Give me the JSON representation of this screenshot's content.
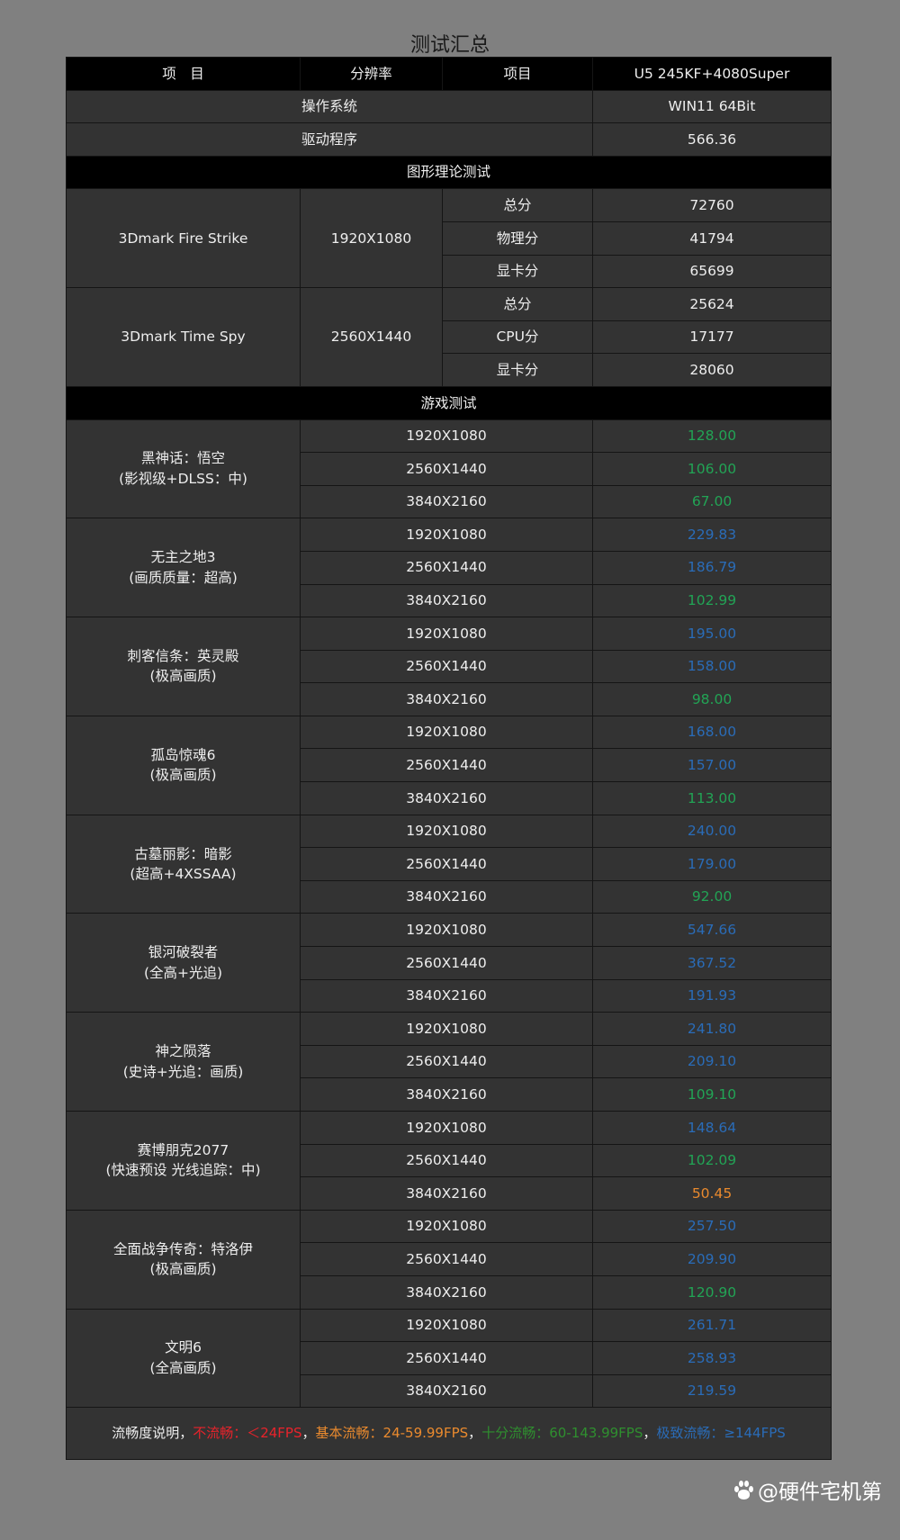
{
  "title": "测试汇总",
  "header": {
    "col1": "项　目",
    "col2": "分辨率",
    "col3": "项目",
    "col4": "U5 245KF+4080Super"
  },
  "os": {
    "label": "操作系统",
    "value": "WIN11 64Bit"
  },
  "driver": {
    "label": "驱动程序",
    "value": "566.36"
  },
  "section_graphics": "图形理论测试",
  "benchmarks": [
    {
      "name": "3Dmark Fire Strike",
      "resolution": "1920X1080",
      "items": [
        {
          "label": "总分",
          "value": "72760"
        },
        {
          "label": "物理分",
          "value": "41794"
        },
        {
          "label": "显卡分",
          "value": "65699"
        }
      ]
    },
    {
      "name": "3Dmark Time Spy",
      "resolution": "2560X1440",
      "items": [
        {
          "label": "总分",
          "value": "25624"
        },
        {
          "label": "CPU分",
          "value": "17177"
        },
        {
          "label": "显卡分",
          "value": "28060"
        }
      ]
    }
  ],
  "section_games": "游戏测试",
  "games": [
    {
      "name": "黑神话：悟空",
      "setting": "(影视级+DLSS：中)",
      "results": [
        {
          "res": "1920X1080",
          "fps": "128.00",
          "level": "green"
        },
        {
          "res": "2560X1440",
          "fps": "106.00",
          "level": "green"
        },
        {
          "res": "3840X2160",
          "fps": "67.00",
          "level": "green"
        }
      ]
    },
    {
      "name": "无主之地3",
      "setting": "(画质质量：超高)",
      "results": [
        {
          "res": "1920X1080",
          "fps": "229.83",
          "level": "blue"
        },
        {
          "res": "2560X1440",
          "fps": "186.79",
          "level": "blue"
        },
        {
          "res": "3840X2160",
          "fps": "102.99",
          "level": "green"
        }
      ]
    },
    {
      "name": "刺客信条：英灵殿",
      "setting": "(极高画质)",
      "results": [
        {
          "res": "1920X1080",
          "fps": "195.00",
          "level": "blue"
        },
        {
          "res": "2560X1440",
          "fps": "158.00",
          "level": "blue"
        },
        {
          "res": "3840X2160",
          "fps": "98.00",
          "level": "green"
        }
      ]
    },
    {
      "name": "孤岛惊魂6",
      "setting": "(极高画质)",
      "results": [
        {
          "res": "1920X1080",
          "fps": "168.00",
          "level": "blue"
        },
        {
          "res": "2560X1440",
          "fps": "157.00",
          "level": "blue"
        },
        {
          "res": "3840X2160",
          "fps": "113.00",
          "level": "green"
        }
      ]
    },
    {
      "name": "古墓丽影：暗影",
      "setting": "(超高+4XSSAA)",
      "results": [
        {
          "res": "1920X1080",
          "fps": "240.00",
          "level": "blue"
        },
        {
          "res": "2560X1440",
          "fps": "179.00",
          "level": "blue"
        },
        {
          "res": "3840X2160",
          "fps": "92.00",
          "level": "green"
        }
      ]
    },
    {
      "name": "银河破裂者",
      "setting": "(全高+光追)",
      "results": [
        {
          "res": "1920X1080",
          "fps": "547.66",
          "level": "blue"
        },
        {
          "res": "2560X1440",
          "fps": "367.52",
          "level": "blue"
        },
        {
          "res": "3840X2160",
          "fps": "191.93",
          "level": "blue"
        }
      ]
    },
    {
      "name": "神之陨落",
      "setting": "(史诗+光追：画质)",
      "results": [
        {
          "res": "1920X1080",
          "fps": "241.80",
          "level": "blue"
        },
        {
          "res": "2560X1440",
          "fps": "209.10",
          "level": "blue"
        },
        {
          "res": "3840X2160",
          "fps": "109.10",
          "level": "green"
        }
      ]
    },
    {
      "name": "赛博朋克2077",
      "setting": "(快速预设 光线追踪：中)",
      "results": [
        {
          "res": "1920X1080",
          "fps": "148.64",
          "level": "blue"
        },
        {
          "res": "2560X1440",
          "fps": "102.09",
          "level": "green"
        },
        {
          "res": "3840X2160",
          "fps": "50.45",
          "level": "orange"
        }
      ]
    },
    {
      "name": "全面战争传奇：特洛伊",
      "setting": "(极高画质)",
      "results": [
        {
          "res": "1920X1080",
          "fps": "257.50",
          "level": "blue"
        },
        {
          "res": "2560X1440",
          "fps": "209.90",
          "level": "blue"
        },
        {
          "res": "3840X2160",
          "fps": "120.90",
          "level": "green"
        }
      ]
    },
    {
      "name": "文明6",
      "setting": "(全高画质)",
      "results": [
        {
          "res": "1920X1080",
          "fps": "261.71",
          "level": "blue"
        },
        {
          "res": "2560X1440",
          "fps": "258.93",
          "level": "blue"
        },
        {
          "res": "3840X2160",
          "fps": "219.59",
          "level": "blue"
        }
      ]
    }
  ],
  "legend": {
    "intro": "流畅度说明，",
    "items": [
      {
        "text": "不流畅：＜24FPS",
        "level": "red"
      },
      {
        "text": "基本流畅：24-59.99FPS",
        "level": "orange"
      },
      {
        "text": "十分流畅：60-143.99FPS",
        "level": "green"
      },
      {
        "text": "极致流畅：≥144FPS",
        "level": "blue"
      }
    ],
    "separator": "，"
  },
  "colors": {
    "green": "#22a455",
    "blue": "#2a6cb8",
    "orange": "#ea8a2e",
    "red": "#e8232b",
    "background": "#808080",
    "cell": "#333333"
  },
  "watermark": "@硬件宅机第"
}
